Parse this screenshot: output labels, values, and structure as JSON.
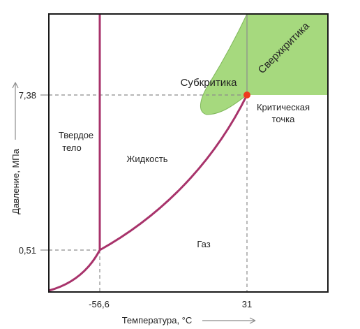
{
  "axes": {
    "x_label": "Температура, °C",
    "y_label": "Давление, МПа",
    "x_ticks": [
      "-56,6",
      "31"
    ],
    "y_ticks": [
      "7,38",
      "0,51"
    ]
  },
  "regions": {
    "solid_line1": "Твердое",
    "solid_line2": "тело",
    "liquid": "Жидкость",
    "gas": "Газ",
    "subcritical": "Субкритика",
    "supercritical": "Сверхкритика",
    "critical_line1": "Критическая",
    "critical_line2": "точка"
  },
  "colors": {
    "phase_curve": "#a8336b",
    "critical_point": "#ee3a1e",
    "region_fill": "#a6d97e",
    "region_stroke": "#7fb85a",
    "frame": "#1a1a1a",
    "dashed": "#8c8c8c"
  }
}
